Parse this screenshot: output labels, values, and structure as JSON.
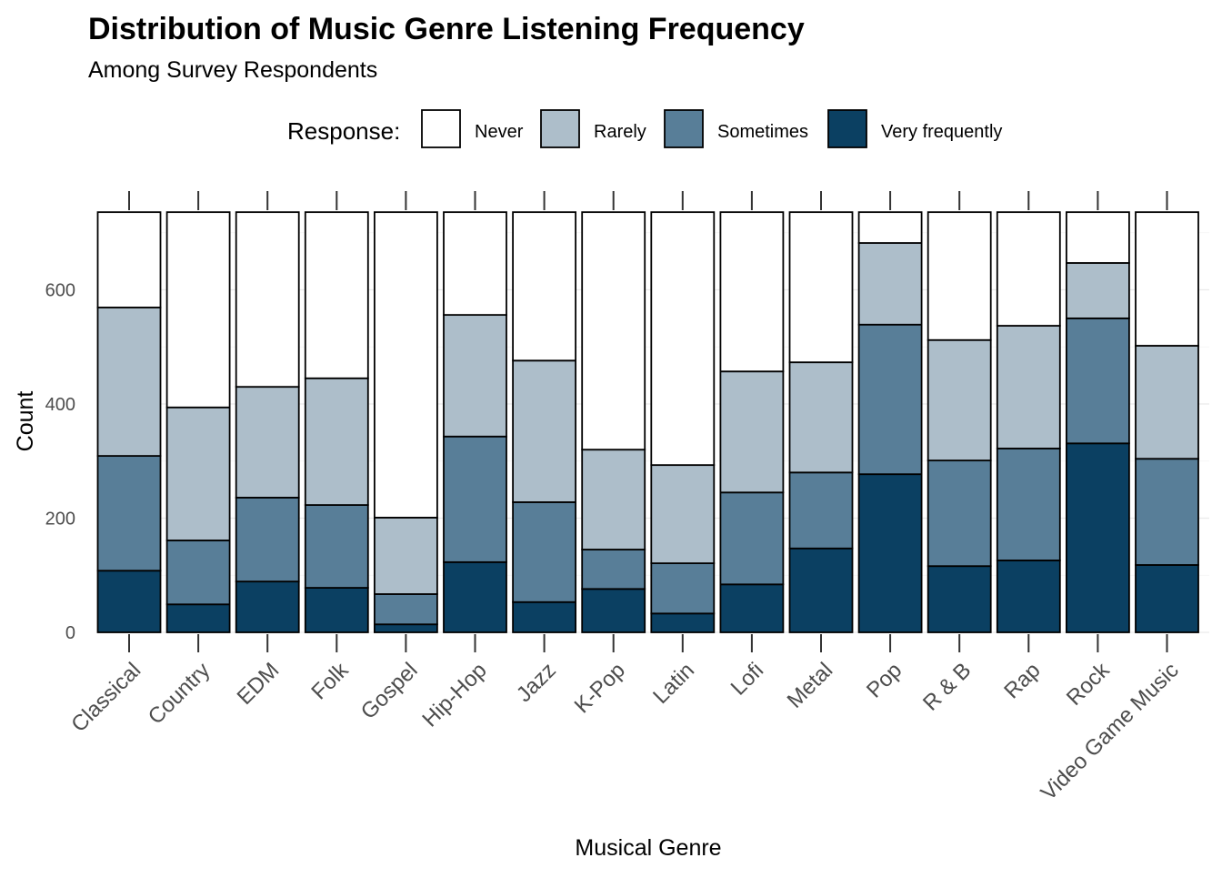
{
  "chart_data": {
    "type": "bar",
    "stacked": true,
    "title": "Distribution of Music Genre Listening Frequency",
    "subtitle": "Among Survey Respondents",
    "xlabel": "Musical Genre",
    "ylabel": "Count",
    "ylim": [
      0,
      736
    ],
    "yticks": [
      0,
      200,
      400,
      600
    ],
    "grid": true,
    "legend": {
      "title": "Response:",
      "placement": "top"
    },
    "categories": [
      "Classical",
      "Country",
      "EDM",
      "Folk",
      "Gospel",
      "Hip-Hop",
      "Jazz",
      "K-Pop",
      "Latin",
      "Lofi",
      "Metal",
      "Pop",
      "R & B",
      "Rap",
      "Rock",
      "Video Game Music"
    ],
    "series": [
      {
        "name": "Very frequently",
        "color": "#0B4062",
        "values": [
          108,
          49,
          89,
          78,
          14,
          123,
          53,
          76,
          33,
          84,
          147,
          277,
          116,
          126,
          331,
          118
        ]
      },
      {
        "name": "Sometimes",
        "color": "#587E98",
        "values": [
          201,
          112,
          147,
          145,
          53,
          220,
          175,
          69,
          88,
          161,
          133,
          262,
          185,
          196,
          219,
          186
        ]
      },
      {
        "name": "Rarely",
        "color": "#ADBECA",
        "values": [
          260,
          233,
          194,
          222,
          134,
          213,
          248,
          175,
          172,
          212,
          193,
          143,
          211,
          215,
          97,
          198
        ]
      },
      {
        "name": "Never",
        "color": "#FFFFFF",
        "values": [
          167,
          342,
          306,
          291,
          535,
          180,
          260,
          416,
          443,
          279,
          263,
          54,
          224,
          199,
          89,
          234
        ]
      }
    ]
  }
}
